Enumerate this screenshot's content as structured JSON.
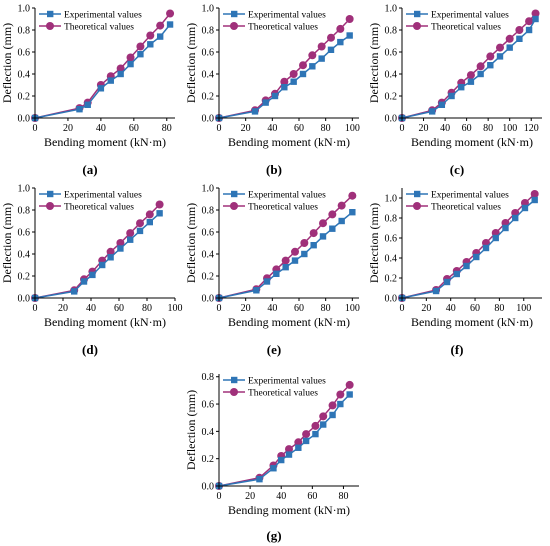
{
  "colors": {
    "experimental": "#2e75b6",
    "theoretical": "#a0307a",
    "axis": "#000000"
  },
  "chart_data": [
    {
      "panel_label": "(a)",
      "type": "line",
      "xlabel": "Bending moment (kN·m)",
      "ylabel": "Deflection (mm)",
      "xlim": [
        0,
        85
      ],
      "ylim": [
        0,
        1.0
      ],
      "xticks": [
        0,
        20,
        40,
        60,
        80
      ],
      "yticks": [
        0.0,
        0.2,
        0.4,
        0.6,
        0.8,
        1.0
      ],
      "ytick_labels": [
        "0.0",
        "0.2",
        "0.4",
        "0.6",
        "0.8",
        "1.0"
      ],
      "legend": "top-left",
      "series": [
        {
          "name": "Experimental values",
          "x": [
            0,
            27,
            32,
            40,
            46,
            52,
            58,
            64,
            70,
            76,
            82
          ],
          "y": [
            0,
            0.08,
            0.12,
            0.27,
            0.34,
            0.4,
            0.49,
            0.58,
            0.67,
            0.74,
            0.85
          ]
        },
        {
          "name": "Theoretical values",
          "x": [
            0,
            27,
            32,
            40,
            46,
            52,
            58,
            64,
            70,
            76,
            82
          ],
          "y": [
            0,
            0.09,
            0.14,
            0.3,
            0.38,
            0.45,
            0.55,
            0.65,
            0.75,
            0.84,
            0.95
          ]
        }
      ]
    },
    {
      "panel_label": "(b)",
      "type": "line",
      "xlabel": "Bending moment (kN·m)",
      "ylabel": "Deflection (mm)",
      "xlim": [
        0,
        105
      ],
      "ylim": [
        0,
        1.0
      ],
      "xticks": [
        0,
        20,
        40,
        60,
        80,
        100
      ],
      "yticks": [
        0.0,
        0.2,
        0.4,
        0.6,
        0.8,
        1.0
      ],
      "ytick_labels": [
        "0.0",
        "0.2",
        "0.4",
        "0.6",
        "0.8",
        "1.0"
      ],
      "legend": "top-left",
      "series": [
        {
          "name": "Experimental values",
          "x": [
            0,
            27,
            35,
            42,
            49,
            56,
            63,
            70,
            77,
            84,
            91,
            98
          ],
          "y": [
            0,
            0.06,
            0.14,
            0.2,
            0.28,
            0.33,
            0.4,
            0.47,
            0.54,
            0.62,
            0.69,
            0.75
          ]
        },
        {
          "name": "Theoretical values",
          "x": [
            0,
            27,
            35,
            42,
            49,
            56,
            63,
            70,
            77,
            84,
            91,
            98
          ],
          "y": [
            0,
            0.07,
            0.16,
            0.22,
            0.33,
            0.4,
            0.48,
            0.57,
            0.65,
            0.73,
            0.81,
            0.9
          ]
        }
      ]
    },
    {
      "panel_label": "(c)",
      "type": "line",
      "xlabel": "Bending moment (kN·m)",
      "ylabel": "Deflection (mm)",
      "xlim": [
        0,
        130
      ],
      "ylim": [
        0,
        1.0
      ],
      "xticks": [
        0,
        20,
        40,
        60,
        80,
        100,
        120
      ],
      "yticks": [
        0.0,
        0.2,
        0.4,
        0.6,
        0.8,
        1.0
      ],
      "ytick_labels": [
        "0.0",
        "0.2",
        "0.4",
        "0.6",
        "0.8",
        "1.0"
      ],
      "legend": "top-left",
      "series": [
        {
          "name": "Experimental values",
          "x": [
            0,
            28,
            37,
            46,
            55,
            64,
            73,
            82,
            91,
            100,
            109,
            118,
            124
          ],
          "y": [
            0,
            0.06,
            0.12,
            0.2,
            0.28,
            0.33,
            0.4,
            0.48,
            0.56,
            0.64,
            0.72,
            0.8,
            0.9
          ]
        },
        {
          "name": "Theoretical values",
          "x": [
            0,
            28,
            37,
            46,
            55,
            64,
            73,
            82,
            91,
            100,
            109,
            118,
            124
          ],
          "y": [
            0,
            0.07,
            0.14,
            0.23,
            0.32,
            0.39,
            0.47,
            0.56,
            0.64,
            0.72,
            0.8,
            0.88,
            0.95
          ]
        }
      ]
    },
    {
      "panel_label": "(d)",
      "type": "line",
      "xlabel": "Bending moment (kN·m)",
      "ylabel": "Deflection (mm)",
      "xlim": [
        0,
        100
      ],
      "ylim": [
        0,
        1.0
      ],
      "xticks": [
        0,
        20,
        40,
        60,
        80,
        100
      ],
      "yticks": [
        0.0,
        0.2,
        0.4,
        0.6,
        0.8,
        1.0
      ],
      "ytick_labels": [
        "0.0",
        "0.2",
        "0.4",
        "0.6",
        "0.8",
        "1.0"
      ],
      "legend": "top-left",
      "series": [
        {
          "name": "Experimental values",
          "x": [
            0,
            28,
            35,
            41,
            48,
            54,
            61,
            68,
            75,
            82,
            89
          ],
          "y": [
            0,
            0.06,
            0.15,
            0.21,
            0.3,
            0.37,
            0.45,
            0.53,
            0.61,
            0.69,
            0.77
          ]
        },
        {
          "name": "Theoretical values",
          "x": [
            0,
            28,
            35,
            41,
            48,
            54,
            61,
            68,
            75,
            82,
            89
          ],
          "y": [
            0,
            0.07,
            0.17,
            0.24,
            0.34,
            0.42,
            0.5,
            0.59,
            0.68,
            0.76,
            0.85
          ]
        }
      ]
    },
    {
      "panel_label": "(e)",
      "type": "line",
      "xlabel": "Bending moment (kN·m)",
      "ylabel": "Deflection (mm)",
      "xlim": [
        0,
        105
      ],
      "ylim": [
        0,
        1.0
      ],
      "xticks": [
        0,
        20,
        40,
        60,
        80,
        100
      ],
      "yticks": [
        0.0,
        0.2,
        0.4,
        0.6,
        0.8,
        1.0
      ],
      "ytick_labels": [
        "0.0",
        "0.2",
        "0.4",
        "0.6",
        "0.8",
        "1.0"
      ],
      "legend": "top-left",
      "series": [
        {
          "name": "Experimental values",
          "x": [
            0,
            28,
            36,
            43,
            50,
            57,
            64,
            71,
            78,
            85,
            92,
            100
          ],
          "y": [
            0,
            0.07,
            0.15,
            0.22,
            0.28,
            0.34,
            0.4,
            0.48,
            0.56,
            0.63,
            0.7,
            0.78
          ]
        },
        {
          "name": "Theoretical values",
          "x": [
            0,
            28,
            36,
            43,
            50,
            57,
            64,
            71,
            78,
            85,
            92,
            100
          ],
          "y": [
            0,
            0.08,
            0.18,
            0.26,
            0.34,
            0.42,
            0.5,
            0.59,
            0.68,
            0.76,
            0.84,
            0.93
          ]
        }
      ]
    },
    {
      "panel_label": "(f)",
      "type": "line",
      "xlabel": "Bending moment (kN·m)",
      "ylabel": "Deflection (mm)",
      "xlim": [
        0,
        115
      ],
      "ylim": [
        0,
        1.1
      ],
      "xticks": [
        0,
        20,
        40,
        60,
        80,
        100
      ],
      "yticks": [
        0.0,
        0.2,
        0.4,
        0.6,
        0.8,
        1.0
      ],
      "ytick_labels": [
        "0.0",
        "0.2",
        "0.4",
        "0.6",
        "0.8",
        "1.0"
      ],
      "legend": "top-left",
      "series": [
        {
          "name": "Experimental values",
          "x": [
            0,
            28,
            37,
            45,
            53,
            61,
            69,
            77,
            85,
            93,
            101,
            109
          ],
          "y": [
            0,
            0.07,
            0.16,
            0.24,
            0.32,
            0.41,
            0.5,
            0.6,
            0.7,
            0.8,
            0.9,
            0.98
          ]
        },
        {
          "name": "Theoretical values",
          "x": [
            0,
            28,
            37,
            45,
            53,
            61,
            69,
            77,
            85,
            93,
            101,
            109
          ],
          "y": [
            0,
            0.08,
            0.19,
            0.27,
            0.36,
            0.45,
            0.55,
            0.65,
            0.75,
            0.85,
            0.95,
            1.04
          ]
        }
      ]
    },
    {
      "panel_label": "(g)",
      "type": "line",
      "xlabel": "Bending moment (kN·m)",
      "ylabel": "Deflection (mm)",
      "xlim": [
        0,
        90
      ],
      "ylim": [
        0,
        0.82
      ],
      "xticks": [
        0,
        20,
        40,
        60,
        80
      ],
      "yticks": [
        0.0,
        0.2,
        0.4,
        0.6,
        0.8
      ],
      "ytick_labels": [
        "0.0",
        "0.2",
        "0.4",
        "0.6",
        "0.8"
      ],
      "legend": "top-left",
      "series": [
        {
          "name": "Experimental values",
          "x": [
            0,
            26,
            35,
            40,
            45,
            51,
            56,
            62,
            67,
            73,
            78,
            84
          ],
          "y": [
            0,
            0.05,
            0.13,
            0.19,
            0.23,
            0.28,
            0.33,
            0.38,
            0.45,
            0.52,
            0.6,
            0.67
          ]
        },
        {
          "name": "Theoretical values",
          "x": [
            0,
            26,
            35,
            40,
            45,
            51,
            56,
            62,
            67,
            73,
            78,
            84
          ],
          "y": [
            0,
            0.06,
            0.15,
            0.22,
            0.27,
            0.32,
            0.38,
            0.44,
            0.51,
            0.59,
            0.67,
            0.74
          ]
        }
      ]
    }
  ]
}
